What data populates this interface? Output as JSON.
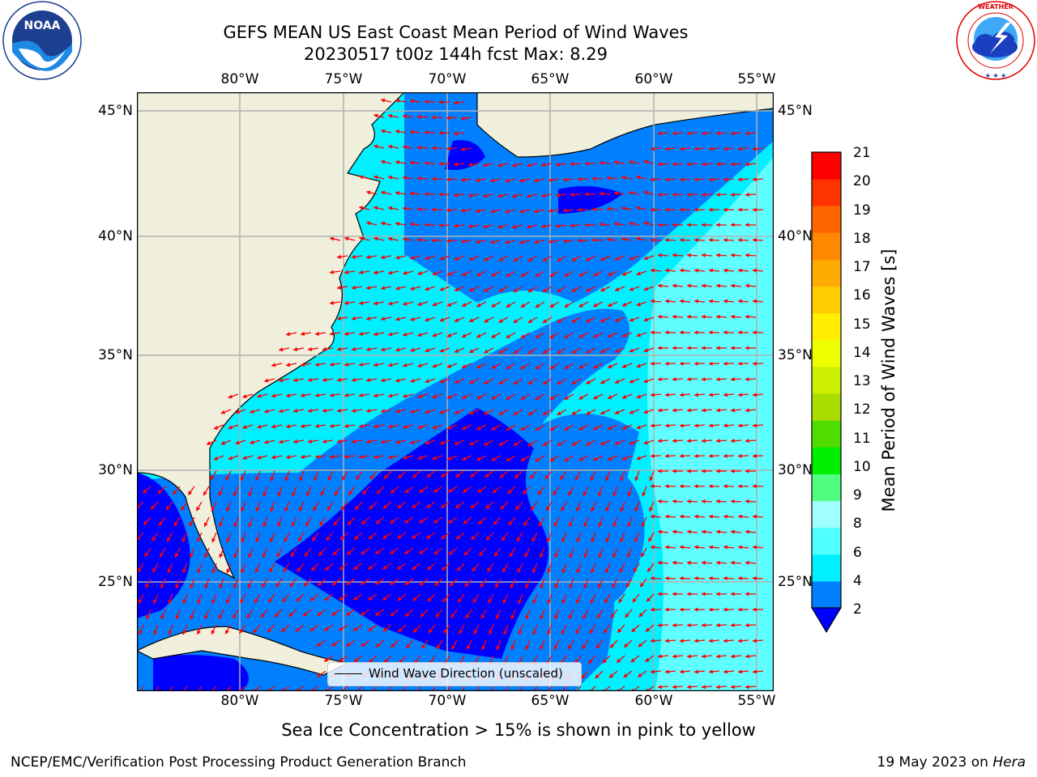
{
  "title": {
    "line1": "GEFS MEAN US East Coast Mean Period of Wind Waves",
    "line2": "20230517 t00z 144h fcst   Max: 8.29"
  },
  "axes": {
    "lon_labels": [
      "80°W",
      "75°W",
      "70°W",
      "65°W",
      "60°W",
      "55°W"
    ],
    "lat_labels": [
      "45°N",
      "40°N",
      "35°N",
      "30°N",
      "25°N"
    ]
  },
  "legend": {
    "label": "Wind Wave Direction (unscaled)"
  },
  "colorbar": {
    "label": "Mean Period of Wind Waves [s]",
    "ticks": [
      "21",
      "20",
      "19",
      "18",
      "17",
      "16",
      "15",
      "14",
      "13",
      "12",
      "11",
      "10",
      "9",
      "8",
      "6",
      "4",
      "2"
    ],
    "colors": [
      "#0000ff",
      "#0080ff",
      "#00f0ff",
      "#50ffff",
      "#a0ffff",
      "#50ff80",
      "#00ee00",
      "#50dd00",
      "#aadd00",
      "#ccee00",
      "#eeff00",
      "#ffee00",
      "#ffcc00",
      "#ffaa00",
      "#ff8800",
      "#ff6600",
      "#ff3300",
      "#ff0000"
    ]
  },
  "note": "Sea Ice Concentration > 15% is shown in pink to yellow",
  "footer": {
    "left": "NCEP/EMC/Verification Post Processing Product Generation Branch",
    "right_date": "19 May 2023 on ",
    "right_machine": "Hera"
  },
  "logos": {
    "noaa": {
      "text": "NOAA",
      "ring": "NATIONAL OCEANIC AND ATMOSPHERIC ADMINISTRATION · U.S. DEPARTMENT OF COMMERCE"
    },
    "nws": {
      "ring": "NATIONAL WEATHER SERVICE"
    }
  },
  "map_colors": {
    "land": "#efefdc",
    "dark_blue": "#0000ff",
    "mid_blue": "#0080ff",
    "cyan": "#00f0ff",
    "light_cyan": "#60ffff",
    "arrow": "#ff0000",
    "grid": "#b0b0b0"
  }
}
